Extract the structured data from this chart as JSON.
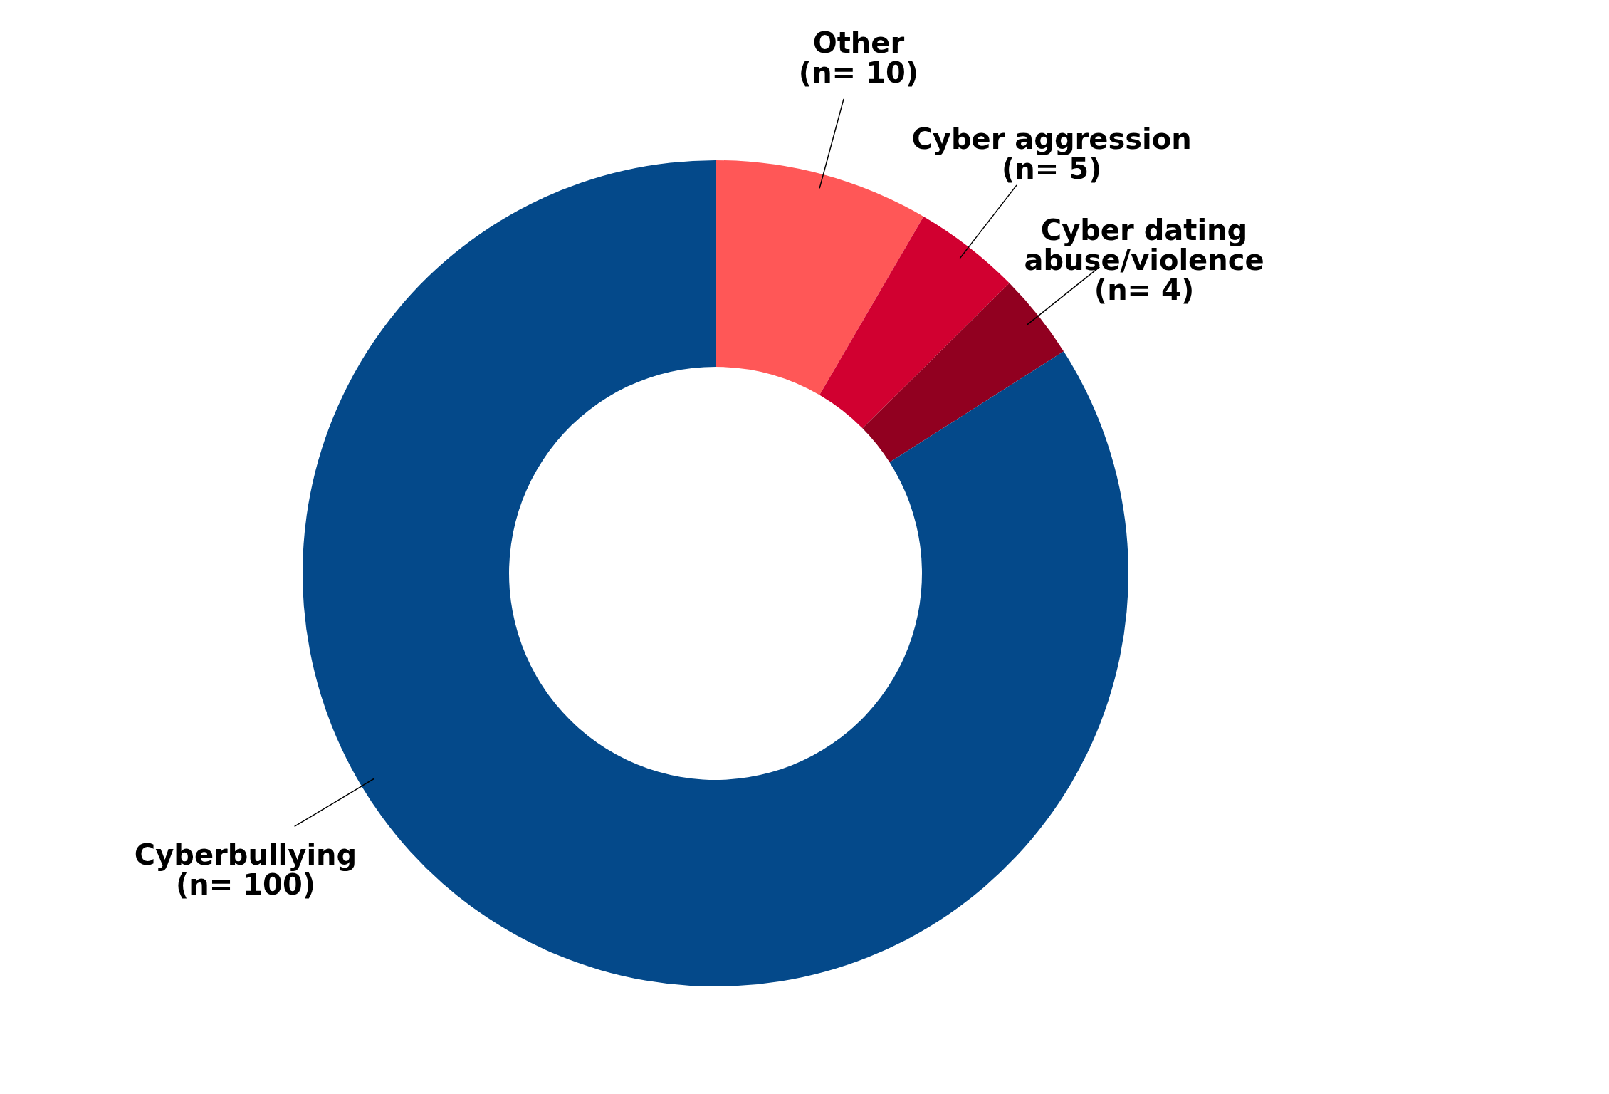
{
  "chart_data": {
    "type": "donut",
    "categories": [
      "Other",
      "Cyber aggression",
      "Cyber dating abuse/violence",
      "Cyberbullying"
    ],
    "values": [
      10,
      5,
      4,
      100
    ],
    "value_labels": [
      "(n= 10)",
      "(n= 5)",
      "(n= 4)",
      "(n= 100)"
    ],
    "colors": [
      "#ff5757",
      "#d10030",
      "#910020",
      "#04498a"
    ]
  }
}
